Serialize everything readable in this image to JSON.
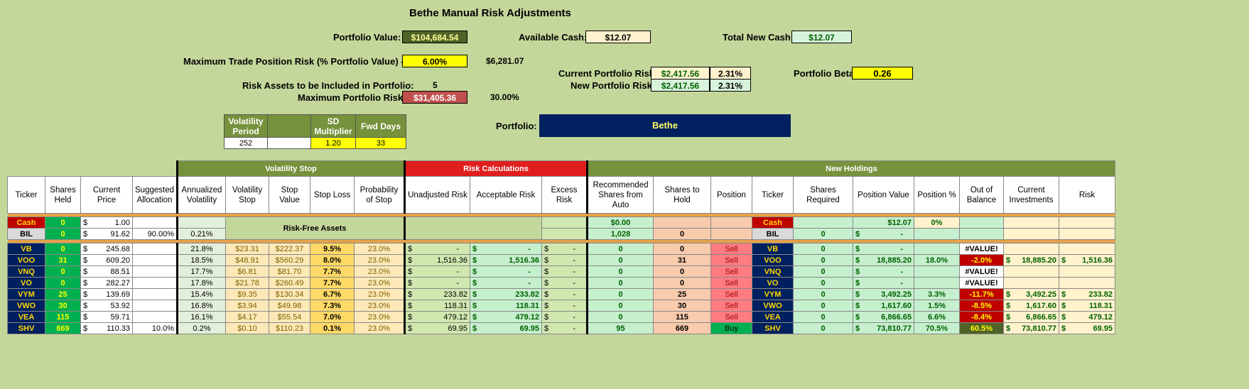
{
  "title": "Bethe Manual Risk Adjustments",
  "summary": {
    "portfolio_value_label": "Portfolio Value:",
    "portfolio_value": "$104,684.54",
    "available_cash_label": "Available Cash:",
    "available_cash": "$12.07",
    "total_new_cash_label": "Total New Cash:",
    "total_new_cash": "$12.07",
    "max_trade_risk_label": "Maximum Trade Position Risk (% Portfolio Value) - R:",
    "max_trade_risk_pct": "6.00%",
    "max_trade_risk_amt": "$6,281.07",
    "current_risk_label": "Current Portfolio Risk:",
    "current_risk_amt": "$2,417.56",
    "current_risk_pct": "2.31%",
    "portfolio_beta_label": "Portfolio Beta",
    "portfolio_beta": "0.26",
    "new_risk_label": "New Portfolio Risk:",
    "new_risk_amt": "$2,417.56",
    "new_risk_pct": "2.31%",
    "risk_assets_label": "Risk Assets to be Included in Portfolio:",
    "risk_assets": "5",
    "max_portfolio_risk_label": "Maximum Portfolio Risk:",
    "max_portfolio_risk_amt": "$31,405.36",
    "max_portfolio_risk_pct": "30.00%",
    "portfolio_label": "Portfolio:",
    "portfolio_name": "Bethe"
  },
  "volatility_settings": {
    "period_header": "Volatility Period",
    "sd_header": "SD Multiplier",
    "fwd_header": "Fwd Days",
    "period": "252",
    "sd": "1.20",
    "fwd": "33"
  },
  "sections": {
    "volatility_stop": "Volatility Stop",
    "risk_calculations": "Risk Calculations",
    "new_holdings": "New Holdings",
    "risk_free": "Risk-Free Assets"
  },
  "headers": [
    "Ticker",
    "Shares Held",
    "Current Price",
    "Suggested Allocation",
    "Annualized Volatility",
    "Volatility Stop",
    "Stop Value",
    "Stop Loss",
    "Probability of Stop",
    "Unadjusted Risk",
    "Acceptable Risk",
    "Excess Risk",
    "Recommended Shares from Auto",
    "Shares to Hold",
    "Position",
    "Ticker",
    "Shares Required",
    "Position Value",
    "Position %",
    "Out of Balance",
    "Current Investments",
    "Risk"
  ],
  "cash_row": {
    "ticker": "Cash",
    "shares": "0",
    "price": "1.00",
    "rec": "$0.00",
    "new_ticker": "Cash",
    "pos_value": "$12.07",
    "pos_pct": "0%"
  },
  "bil_row": {
    "ticker": "BIL",
    "shares": "0",
    "price": "91.62",
    "alloc": "90.00%",
    "vol": "0.21%",
    "rec": "1,028",
    "hold": "0",
    "new_ticker": "BIL",
    "req": "0",
    "pos_value": "-"
  },
  "rows": [
    {
      "ticker": "VB",
      "shares": "0",
      "price": "245.68",
      "alloc": "",
      "vol": "21.8%",
      "vstop": "$23.31",
      "sval": "$222.37",
      "sloss": "9.5%",
      "prob": "23.0%",
      "unadj": "-",
      "acc": "-",
      "excess": "-",
      "rec": "0",
      "hold": "0",
      "pos": "Sell",
      "nt": "VB",
      "req": "0",
      "pval": "-",
      "ppct": "",
      "oob": "#VALUE!",
      "ci": "",
      "rk": ""
    },
    {
      "ticker": "VOO",
      "shares": "31",
      "price": "609.20",
      "alloc": "",
      "vol": "18.5%",
      "vstop": "$48.91",
      "sval": "$560.29",
      "sloss": "8.0%",
      "prob": "23.0%",
      "unadj": "1,516.36",
      "acc": "1,516.36",
      "excess": "-",
      "rec": "0",
      "hold": "31",
      "pos": "Sell",
      "nt": "VOO",
      "req": "0",
      "pval": "18,885.20",
      "ppct": "18.0%",
      "oob": "-2.0%",
      "ci": "18,885.20",
      "rk": "1,516.36"
    },
    {
      "ticker": "VNQ",
      "shares": "0",
      "price": "88.51",
      "alloc": "",
      "vol": "17.7%",
      "vstop": "$6.81",
      "sval": "$81.70",
      "sloss": "7.7%",
      "prob": "23.0%",
      "unadj": "-",
      "acc": "-",
      "excess": "-",
      "rec": "0",
      "hold": "0",
      "pos": "Sell",
      "nt": "VNQ",
      "req": "0",
      "pval": "-",
      "ppct": "",
      "oob": "#VALUE!",
      "ci": "",
      "rk": ""
    },
    {
      "ticker": "VO",
      "shares": "0",
      "price": "282.27",
      "alloc": "",
      "vol": "17.8%",
      "vstop": "$21.78",
      "sval": "$260.49",
      "sloss": "7.7%",
      "prob": "23.0%",
      "unadj": "-",
      "acc": "-",
      "excess": "-",
      "rec": "0",
      "hold": "0",
      "pos": "Sell",
      "nt": "VO",
      "req": "0",
      "pval": "-",
      "ppct": "",
      "oob": "#VALUE!",
      "ci": "",
      "rk": ""
    },
    {
      "ticker": "VYM",
      "shares": "25",
      "price": "139.69",
      "alloc": "",
      "vol": "15.4%",
      "vstop": "$9.35",
      "sval": "$130.34",
      "sloss": "6.7%",
      "prob": "23.0%",
      "unadj": "233.82",
      "acc": "233.82",
      "excess": "-",
      "rec": "0",
      "hold": "25",
      "pos": "Sell",
      "nt": "VYM",
      "req": "0",
      "pval": "3,492.25",
      "ppct": "3.3%",
      "oob": "-11.7%",
      "ci": "3,492.25",
      "rk": "233.82"
    },
    {
      "ticker": "VWO",
      "shares": "30",
      "price": "53.92",
      "alloc": "",
      "vol": "16.8%",
      "vstop": "$3.94",
      "sval": "$49.98",
      "sloss": "7.3%",
      "prob": "23.0%",
      "unadj": "118.31",
      "acc": "118.31",
      "excess": "-",
      "rec": "0",
      "hold": "30",
      "pos": "Sell",
      "nt": "VWO",
      "req": "0",
      "pval": "1,617.60",
      "ppct": "1.5%",
      "oob": "-8.5%",
      "ci": "1,617.60",
      "rk": "118.31"
    },
    {
      "ticker": "VEA",
      "shares": "115",
      "price": "59.71",
      "alloc": "",
      "vol": "16.1%",
      "vstop": "$4.17",
      "sval": "$55.54",
      "sloss": "7.0%",
      "prob": "23.0%",
      "unadj": "479.12",
      "acc": "479.12",
      "excess": "-",
      "rec": "0",
      "hold": "115",
      "pos": "Sell",
      "nt": "VEA",
      "req": "0",
      "pval": "6,866.65",
      "ppct": "6.6%",
      "oob": "-8.4%",
      "ci": "6,866.65",
      "rk": "479.12"
    },
    {
      "ticker": "SHV",
      "shares": "669",
      "price": "110.33",
      "alloc": "10.0%",
      "vol": "0.2%",
      "vstop": "$0.10",
      "sval": "$110.23",
      "sloss": "0.1%",
      "prob": "23.0%",
      "unadj": "69.95",
      "acc": "69.95",
      "excess": "-",
      "rec": "95",
      "hold": "669",
      "pos": "Buy",
      "nt": "SHV",
      "req": "0",
      "pval": "73,810.77",
      "ppct": "70.5%",
      "oob": "60.5%",
      "ci": "73,810.77",
      "rk": "69.95"
    }
  ],
  "colors": {
    "background": "#c4d79b",
    "ticker_bg": "#00205f",
    "sell": "#ff7c80",
    "buy": "#00b050"
  }
}
